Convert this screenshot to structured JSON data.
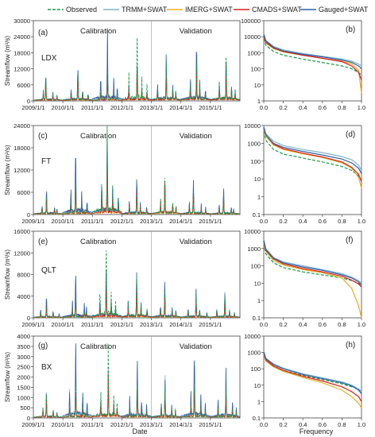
{
  "legend": [
    {
      "name": "Observed",
      "color": "#1a9a4a",
      "dash": true
    },
    {
      "name": "TRMM+SWAT",
      "color": "#7fb3c8",
      "dash": false
    },
    {
      "name": "IMERG+SWAT",
      "color": "#e8b020",
      "dash": false
    },
    {
      "name": "CMADS+SWAT",
      "color": "#d62020",
      "dash": false
    },
    {
      "name": "Gauged+SWAT",
      "color": "#2f5fa8",
      "dash": false
    }
  ],
  "common": {
    "y_axis_label": "Streamflow (m³/s)",
    "x_axis_label": "Date",
    "freq_axis_label": "Frequency",
    "calibration_label": "Calibration",
    "validation_label": "Validation"
  },
  "chart_data": [
    {
      "type": "line",
      "panel": "(a)",
      "station": "LDX",
      "scale": "linear",
      "ylim": [
        0,
        30000
      ],
      "yticks": [
        "0",
        "6000",
        "12000",
        "18000",
        "24000",
        "30000"
      ],
      "xticks": [
        "2009/1/1",
        "2010/1/1",
        "2011/1/1",
        "2012/1/1",
        "2013/1/1",
        "2014/1/1",
        "2015/1/1"
      ],
      "x_range_years": [
        2009,
        2016
      ],
      "calib_split_year": 2013,
      "annual_peaks": [
        {
          "year": 2009,
          "Observed": 9000,
          "TRMM+SWAT": 8000,
          "IMERG+SWAT": 6000,
          "CMADS+SWAT": 7000,
          "Gauged+SWAT": 10000
        },
        {
          "year": 2010,
          "Observed": 10000,
          "TRMM+SWAT": 11000,
          "IMERG+SWAT": 7000,
          "CMADS+SWAT": 8000,
          "Gauged+SWAT": 13000
        },
        {
          "year": 2011,
          "Observed": 10000,
          "TRMM+SWAT": 25000,
          "IMERG+SWAT": 8000,
          "CMADS+SWAT": 9000,
          "Gauged+SWAT": 26000
        },
        {
          "year": 2012,
          "Observed": 27000,
          "TRMM+SWAT": 14000,
          "IMERG+SWAT": 9000,
          "CMADS+SWAT": 12000,
          "Gauged+SWAT": 15000
        },
        {
          "year": 2013,
          "Observed": 15000,
          "TRMM+SWAT": 14000,
          "IMERG+SWAT": 10000,
          "CMADS+SWAT": 10000,
          "Gauged+SWAT": 18000
        },
        {
          "year": 2014,
          "Observed": 16000,
          "TRMM+SWAT": 21000,
          "IMERG+SWAT": 11000,
          "CMADS+SWAT": 12000,
          "Gauged+SWAT": 22000
        },
        {
          "year": 2015,
          "Observed": 19000,
          "TRMM+SWAT": 15000,
          "IMERG+SWAT": 10000,
          "CMADS+SWAT": 11000,
          "Gauged+SWAT": 17000
        }
      ]
    },
    {
      "type": "line",
      "panel": "(b)",
      "scale": "log",
      "ylim": [
        1,
        100000
      ],
      "yticks": [
        "1",
        "10",
        "100",
        "1000",
        "10000",
        "100000"
      ],
      "xlim": [
        0,
        1
      ],
      "xticks": [
        "0.0",
        "0.2",
        "0.4",
        "0.6",
        "0.8",
        "1.0"
      ],
      "x": [
        0,
        0.02,
        0.1,
        0.2,
        0.4,
        0.6,
        0.8,
        0.9,
        0.97,
        1.0
      ],
      "series": [
        {
          "name": "Observed",
          "values": [
            8000,
            3000,
            1200,
            700,
            400,
            250,
            150,
            100,
            60,
            40
          ]
        },
        {
          "name": "TRMM+SWAT",
          "values": [
            15000,
            6000,
            2500,
            1500,
            900,
            600,
            400,
            300,
            200,
            150
          ]
        },
        {
          "name": "IMERG+SWAT",
          "values": [
            9000,
            4000,
            1800,
            1100,
            700,
            450,
            300,
            200,
            80,
            3
          ]
        },
        {
          "name": "CMADS+SWAT",
          "values": [
            10000,
            4500,
            2000,
            1200,
            700,
            450,
            280,
            150,
            60,
            20
          ]
        },
        {
          "name": "Gauged+SWAT",
          "values": [
            14000,
            5500,
            2200,
            1300,
            800,
            550,
            350,
            250,
            150,
            100
          ]
        }
      ]
    },
    {
      "type": "line",
      "panel": "(c)",
      "station": "FT",
      "scale": "linear",
      "ylim": [
        0,
        24000
      ],
      "yticks": [
        "0",
        "6000",
        "12000",
        "18000",
        "24000"
      ],
      "xticks": [
        "2009/1/1",
        "2010/1/1",
        "2011/1/1",
        "2012/1/1",
        "2013/1/1",
        "2014/1/1",
        "2015/1/1"
      ],
      "x_range_years": [
        2009,
        2016
      ],
      "calib_split_year": 2013,
      "annual_peaks": [
        {
          "year": 2009,
          "Observed": 5000,
          "TRMM+SWAT": 6000,
          "IMERG+SWAT": 4000,
          "CMADS+SWAT": 5000,
          "Gauged+SWAT": 7000
        },
        {
          "year": 2010,
          "Observed": 9000,
          "TRMM+SWAT": 17000,
          "IMERG+SWAT": 6000,
          "CMADS+SWAT": 8000,
          "Gauged+SWAT": 19000
        },
        {
          "year": 2011,
          "Observed": 24000,
          "TRMM+SWAT": 22000,
          "IMERG+SWAT": 10000,
          "CMADS+SWAT": 12000,
          "Gauged+SWAT": 22000
        },
        {
          "year": 2012,
          "Observed": 6000,
          "TRMM+SWAT": 9000,
          "IMERG+SWAT": 5000,
          "CMADS+SWAT": 7000,
          "Gauged+SWAT": 10000
        },
        {
          "year": 2013,
          "Observed": 11000,
          "TRMM+SWAT": 8000,
          "IMERG+SWAT": 6000,
          "CMADS+SWAT": 10000,
          "Gauged+SWAT": 9000
        },
        {
          "year": 2014,
          "Observed": 6000,
          "TRMM+SWAT": 8000,
          "IMERG+SWAT": 5000,
          "CMADS+SWAT": 6000,
          "Gauged+SWAT": 9000
        },
        {
          "year": 2015,
          "Observed": 5000,
          "TRMM+SWAT": 6000,
          "IMERG+SWAT": 4000,
          "CMADS+SWAT": 5000,
          "Gauged+SWAT": 7000
        }
      ]
    },
    {
      "type": "line",
      "panel": "(d)",
      "scale": "log",
      "ylim": [
        0.1,
        10000
      ],
      "yticks": [
        "0.1",
        "1",
        "10",
        "100",
        "1000",
        "10000"
      ],
      "xlim": [
        0,
        1
      ],
      "xticks": [
        "0.0",
        "0.2",
        "0.4",
        "0.6",
        "0.8",
        "1.0"
      ],
      "x": [
        0,
        0.02,
        0.1,
        0.2,
        0.4,
        0.6,
        0.8,
        0.9,
        0.97,
        1.0
      ],
      "series": [
        {
          "name": "Observed",
          "values": [
            5000,
            1500,
            450,
            250,
            150,
            90,
            50,
            30,
            15,
            8
          ]
        },
        {
          "name": "TRMM+SWAT",
          "values": [
            9000,
            3500,
            1300,
            750,
            450,
            300,
            180,
            120,
            60,
            30
          ]
        },
        {
          "name": "IMERG+SWAT",
          "values": [
            6000,
            2500,
            800,
            450,
            260,
            160,
            80,
            40,
            12,
            3
          ]
        },
        {
          "name": "CMADS+SWAT",
          "values": [
            7000,
            3000,
            900,
            500,
            280,
            170,
            90,
            45,
            18,
            7
          ]
        },
        {
          "name": "Gauged+SWAT",
          "values": [
            8000,
            3000,
            1000,
            600,
            350,
            220,
            130,
            80,
            40,
            20
          ]
        }
      ]
    },
    {
      "type": "line",
      "panel": "(e)",
      "station": "QLT",
      "scale": "linear",
      "ylim": [
        0,
        16000
      ],
      "yticks": [
        "0",
        "4000",
        "8000",
        "12000",
        "16000"
      ],
      "xticks": [
        "2009/1/1",
        "2010/1/1",
        "2011/1/1",
        "2012/1/1",
        "2013/1/1",
        "2014/1/1",
        "2015/1/1"
      ],
      "x_range_years": [
        2009,
        2016
      ],
      "calib_split_year": 2013,
      "annual_peaks": [
        {
          "year": 2009,
          "Observed": 2500,
          "TRMM+SWAT": 4000,
          "IMERG+SWAT": 2000,
          "CMADS+SWAT": 2500,
          "Gauged+SWAT": 4000
        },
        {
          "year": 2010,
          "Observed": 4000,
          "TRMM+SWAT": 8000,
          "IMERG+SWAT": 3000,
          "CMADS+SWAT": 4000,
          "Gauged+SWAT": 8500
        },
        {
          "year": 2011,
          "Observed": 14000,
          "TRMM+SWAT": 10000,
          "IMERG+SWAT": 5000,
          "CMADS+SWAT": 6000,
          "Gauged+SWAT": 10000
        },
        {
          "year": 2012,
          "Observed": 8000,
          "TRMM+SWAT": 7000,
          "IMERG+SWAT": 4000,
          "CMADS+SWAT": 5000,
          "Gauged+SWAT": 8000
        },
        {
          "year": 2013,
          "Observed": 5000,
          "TRMM+SWAT": 6000,
          "IMERG+SWAT": 3000,
          "CMADS+SWAT": 4000,
          "Gauged+SWAT": 6500
        },
        {
          "year": 2014,
          "Observed": 4000,
          "TRMM+SWAT": 5000,
          "IMERG+SWAT": 2500,
          "CMADS+SWAT": 3000,
          "Gauged+SWAT": 5000
        },
        {
          "year": 2015,
          "Observed": 4000,
          "TRMM+SWAT": 5000,
          "IMERG+SWAT": 2500,
          "CMADS+SWAT": 3000,
          "Gauged+SWAT": 4500
        }
      ]
    },
    {
      "type": "line",
      "panel": "(f)",
      "scale": "log",
      "ylim": [
        0.1,
        10000
      ],
      "yticks": [
        "0.1",
        "1",
        "10",
        "100",
        "1000",
        "10000"
      ],
      "xlim": [
        0,
        1
      ],
      "xticks": [
        "0.0",
        "0.2",
        "0.4",
        "0.6",
        "0.8",
        "1.0"
      ],
      "x": [
        0,
        0.02,
        0.1,
        0.2,
        0.4,
        0.6,
        0.8,
        0.9,
        0.97,
        1.0
      ],
      "series": [
        {
          "name": "Observed",
          "values": [
            2000,
            500,
            150,
            80,
            45,
            30,
            20,
            14,
            10,
            7
          ]
        },
        {
          "name": "TRMM+SWAT",
          "values": [
            3000,
            1000,
            300,
            170,
            100,
            60,
            35,
            22,
            14,
            10
          ]
        },
        {
          "name": "IMERG+SWAT",
          "values": [
            2000,
            700,
            200,
            110,
            60,
            40,
            20,
            5,
            0.5,
            0.1
          ]
        },
        {
          "name": "CMADS+SWAT",
          "values": [
            2500,
            800,
            250,
            130,
            70,
            45,
            25,
            15,
            9,
            6
          ]
        },
        {
          "name": "Gauged+SWAT",
          "values": [
            3000,
            900,
            280,
            150,
            85,
            55,
            30,
            20,
            12,
            8
          ]
        }
      ]
    },
    {
      "type": "line",
      "panel": "(g)",
      "station": "BX",
      "scale": "linear",
      "ylim": [
        0,
        4000
      ],
      "yticks": [
        "0",
        "500",
        "1000",
        "1500",
        "2000",
        "2500",
        "3000",
        "3500",
        "4000"
      ],
      "xticks": [
        "2009/1/1",
        "2010/1/1",
        "2011/1/1",
        "2012/1/1",
        "2013/1/1",
        "2014/1/1",
        "2015/1/1"
      ],
      "x_range_years": [
        2009,
        2016
      ],
      "calib_split_year": 2013,
      "annual_peaks": [
        {
          "year": 2009,
          "Observed": 1200,
          "TRMM+SWAT": 1300,
          "IMERG+SWAT": 1000,
          "CMADS+SWAT": 900,
          "Gauged+SWAT": 1200
        },
        {
          "year": 2010,
          "Observed": 1500,
          "TRMM+SWAT": 3700,
          "IMERG+SWAT": 1500,
          "CMADS+SWAT": 1300,
          "Gauged+SWAT": 3600
        },
        {
          "year": 2011,
          "Observed": 3500,
          "TRMM+SWAT": 2300,
          "IMERG+SWAT": 1800,
          "CMADS+SWAT": 2100,
          "Gauged+SWAT": 2000
        },
        {
          "year": 2012,
          "Observed": 1600,
          "TRMM+SWAT": 2800,
          "IMERG+SWAT": 1200,
          "CMADS+SWAT": 1300,
          "Gauged+SWAT": 2800
        },
        {
          "year": 2013,
          "Observed": 1500,
          "TRMM+SWAT": 2000,
          "IMERG+SWAT": 1200,
          "CMADS+SWAT": 1100,
          "Gauged+SWAT": 1800
        },
        {
          "year": 2014,
          "Observed": 1600,
          "TRMM+SWAT": 3200,
          "IMERG+SWAT": 1500,
          "CMADS+SWAT": 1400,
          "Gauged+SWAT": 3200
        },
        {
          "year": 2015,
          "Observed": 1400,
          "TRMM+SWAT": 2400,
          "IMERG+SWAT": 1300,
          "CMADS+SWAT": 1200,
          "Gauged+SWAT": 2300
        }
      ]
    },
    {
      "type": "line",
      "panel": "(h)",
      "scale": "log",
      "ylim": [
        0.1,
        10000
      ],
      "yticks": [
        "0.1",
        "1",
        "10",
        "100",
        "1000",
        "10000"
      ],
      "xlim": [
        0,
        1
      ],
      "xticks": [
        "0.0",
        "0.2",
        "0.4",
        "0.6",
        "0.8",
        "1.0"
      ],
      "x": [
        0,
        0.02,
        0.1,
        0.2,
        0.4,
        0.6,
        0.8,
        0.9,
        0.97,
        1.0
      ],
      "series": [
        {
          "name": "Observed",
          "values": [
            900,
            350,
            150,
            80,
            40,
            22,
            12,
            8,
            6,
            4
          ]
        },
        {
          "name": "TRMM+SWAT",
          "values": [
            1200,
            450,
            200,
            110,
            50,
            28,
            16,
            10,
            6,
            3
          ]
        },
        {
          "name": "IMERG+SWAT",
          "values": [
            800,
            300,
            130,
            70,
            30,
            14,
            5,
            2,
            0.8,
            0.4
          ]
        },
        {
          "name": "CMADS+SWAT",
          "values": [
            900,
            350,
            150,
            80,
            35,
            18,
            8,
            4,
            2,
            1
          ]
        },
        {
          "name": "Gauged+SWAT",
          "values": [
            1100,
            420,
            180,
            100,
            45,
            25,
            14,
            9,
            5,
            3
          ]
        }
      ]
    }
  ]
}
